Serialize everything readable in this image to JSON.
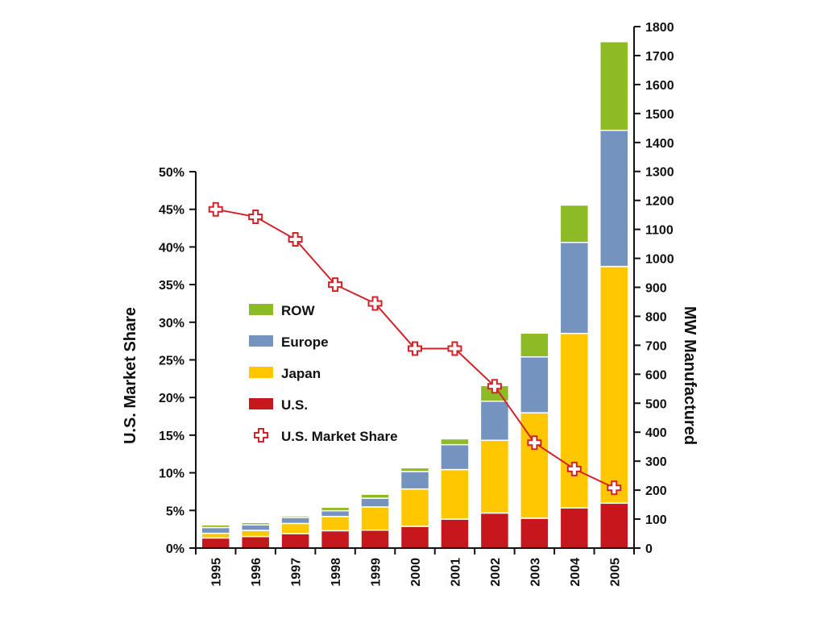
{
  "chart_data": {
    "type": "bar",
    "stacked": true,
    "categories": [
      "1995",
      "1996",
      "1997",
      "1998",
      "1999",
      "2000",
      "2001",
      "2002",
      "2003",
      "2004",
      "2005"
    ],
    "series": [
      {
        "name": "U.S.",
        "color": "#c8161d",
        "values": [
          35,
          40,
          50,
          60,
          62,
          75,
          100,
          121,
          103,
          139,
          155
        ]
      },
      {
        "name": "Japan",
        "color": "#ffc700",
        "values": [
          16,
          21,
          35,
          49,
          80,
          129,
          171,
          251,
          364,
          602,
          817
        ]
      },
      {
        "name": "Europe",
        "color": "#7494bf",
        "values": [
          20,
          19,
          20,
          20,
          30,
          60,
          86,
          135,
          193,
          314,
          470
        ]
      },
      {
        "name": "ROW",
        "color": "#8dbb25",
        "values": [
          9,
          8,
          6,
          12,
          14,
          13,
          20,
          54,
          82,
          129,
          306
        ]
      }
    ],
    "line_series": {
      "name": "U.S. Market Share",
      "color": "#d2232a",
      "axis": "left",
      "values": [
        45,
        44,
        41,
        35,
        32.5,
        26.5,
        26.5,
        21.5,
        14,
        10.5,
        8
      ]
    },
    "y_left": {
      "label": "U.S. Market Share",
      "ylim": [
        0,
        50
      ],
      "ticks": [
        "0%",
        "5%",
        "10%",
        "15%",
        "20%",
        "25%",
        "30%",
        "35%",
        "40%",
        "45%",
        "50%"
      ]
    },
    "y_right": {
      "label": "MW Manufactured",
      "ylim": [
        0,
        1800
      ],
      "ticks": [
        "0",
        "100",
        "200",
        "300",
        "400",
        "500",
        "600",
        "700",
        "800",
        "900",
        "1000",
        "1100",
        "1200",
        "1300",
        "1400",
        "1500",
        "1600",
        "1700",
        "1800"
      ]
    },
    "legend": {
      "placement": "center-left",
      "entries": [
        {
          "label": "ROW",
          "color": "#8dbb25",
          "kind": "bar"
        },
        {
          "label": "Europe",
          "color": "#7494bf",
          "kind": "bar"
        },
        {
          "label": "Japan",
          "color": "#ffc700",
          "kind": "bar"
        },
        {
          "label": "U.S.",
          "color": "#c8161d",
          "kind": "bar"
        },
        {
          "label": "U.S. Market Share",
          "color": "#d2232a",
          "kind": "line"
        }
      ]
    },
    "grid": false
  }
}
